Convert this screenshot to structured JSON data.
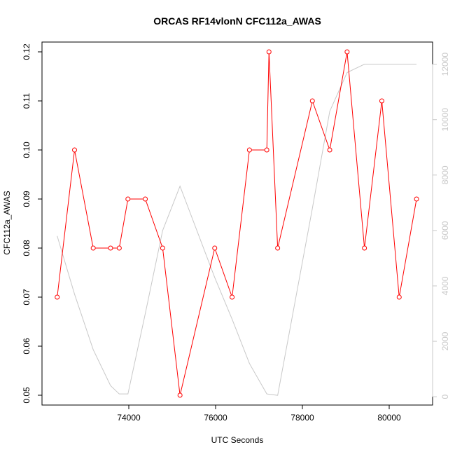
{
  "chart_data": {
    "type": "line",
    "title": "ORCAS RF14vlonN CFC112a_AWAS",
    "xlabel": "UTC Seconds",
    "ylabel": "CFC112a_AWAS",
    "xlim": [
      72000,
      81000
    ],
    "ylim": [
      0.048,
      0.122
    ],
    "y2lim": [
      -300,
      12800
    ],
    "x_ticks": [
      74000,
      76000,
      78000,
      80000
    ],
    "x_tick_labels": [
      "74000",
      "76000",
      "78000",
      "80000"
    ],
    "y_ticks": [
      0.05,
      0.06,
      0.07,
      0.08,
      0.09,
      0.1,
      0.11,
      0.12
    ],
    "y_tick_labels": [
      "0.05",
      "0.06",
      "0.07",
      "0.08",
      "0.09",
      "0.10",
      "0.11",
      "0.12"
    ],
    "y2_ticks": [
      0,
      2000,
      4000,
      6000,
      8000,
      10000,
      12000
    ],
    "y2_tick_labels": [
      "0",
      "2000",
      "4000",
      "6000",
      "8000",
      "10000",
      "12000"
    ],
    "grid": false,
    "series": [
      {
        "axis": "left",
        "color": "#ff0000",
        "marker": "open-circle",
        "x": [
          72350,
          72750,
          73180,
          73580,
          73780,
          73980,
          74380,
          74780,
          75180,
          75980,
          76380,
          76780,
          77180,
          77230,
          77430,
          78230,
          78630,
          79030,
          79430,
          79830,
          80230,
          80630
        ],
        "y": [
          0.07,
          0.1,
          0.08,
          0.08,
          0.08,
          0.09,
          0.09,
          0.08,
          0.05,
          0.08,
          0.07,
          0.1,
          0.1,
          0.12,
          0.08,
          0.11,
          0.1,
          0.12,
          0.08,
          0.11,
          0.07,
          0.09
        ]
      },
      {
        "axis": "right",
        "color": "#c8c8c8",
        "marker": "none",
        "x": [
          72350,
          72750,
          73180,
          73580,
          73780,
          73980,
          74380,
          74780,
          75180,
          75980,
          76380,
          76780,
          77180,
          77430,
          78230,
          78630,
          79030,
          79430,
          79830,
          80230,
          80630
        ],
        "y": [
          5800,
          3700,
          1700,
          400,
          100,
          100,
          3000,
          6000,
          7600,
          4300,
          2800,
          1200,
          100,
          50,
          6800,
          10300,
          11700,
          12000,
          12000,
          12000,
          12000
        ]
      }
    ]
  }
}
